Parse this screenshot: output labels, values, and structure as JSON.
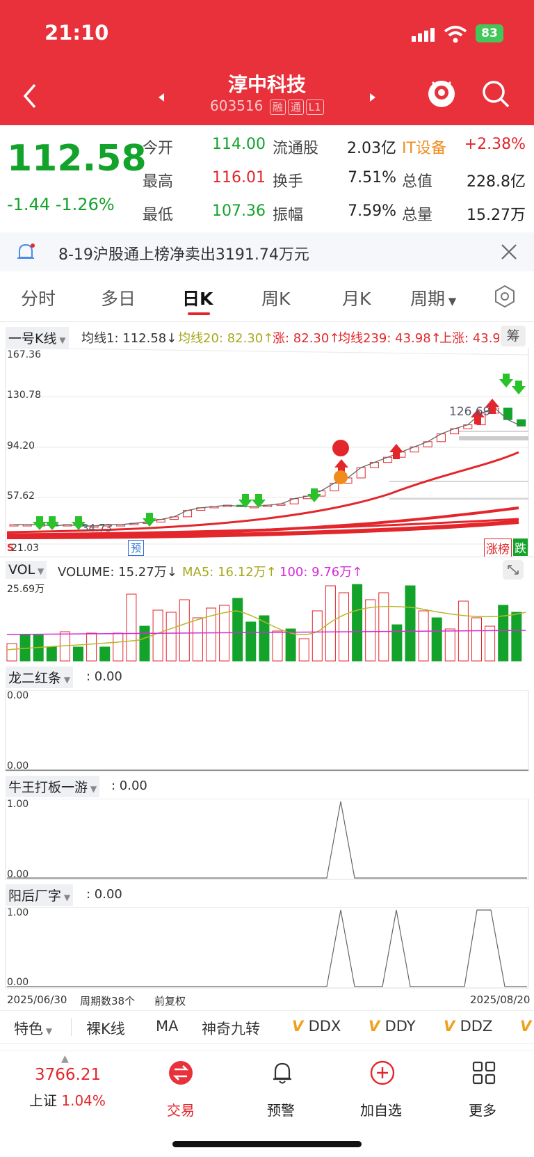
{
  "status": {
    "time": "21:10",
    "battery": "83"
  },
  "header": {
    "title": "淳中科技",
    "code": "603516",
    "tags": [
      "融",
      "通",
      "L1"
    ]
  },
  "quote": {
    "price": "112.58",
    "change": "-1.44",
    "change_pct": "-1.26%",
    "rows": [
      {
        "l1": "今开",
        "v1": "114.00",
        "l2": "流通股",
        "v2": "2.03亿",
        "l3": "IT设备",
        "v3": "+2.38%"
      },
      {
        "l1": "最高",
        "v1": "116.01",
        "l2": "换手",
        "v2": "7.51%",
        "l3": "总值",
        "v3": "228.8亿"
      },
      {
        "l1": "最低",
        "v1": "107.36",
        "l2": "振幅",
        "v2": "7.59%",
        "l3": "总量",
        "v3": "15.27万"
      }
    ]
  },
  "news": {
    "text": "8-19沪股通上榜净卖出3191.74万元"
  },
  "tabs": [
    "分时",
    "多日",
    "日K",
    "周K",
    "月K",
    "周期"
  ],
  "kline": {
    "selector": "一号K线",
    "indicators": [
      "均线1: 112.58↓",
      "均线20: 82.30↑",
      "涨: 82.30↑",
      "均线239: 43.98↑",
      "上涨: 43.9"
    ],
    "side_btn": "筹",
    "y_ticks": [
      "167.36",
      "130.78",
      "94.20",
      "57.62",
      "21.03"
    ],
    "high_label": "126.69",
    "low_label": "34.73",
    "pre_tag": "预",
    "s_tag": "S",
    "rank_tags": [
      "涨榜",
      "跌"
    ]
  },
  "volume": {
    "selector": "VOL",
    "indicators": [
      "VOLUME: 15.27万↓",
      "MA5: 16.12万↑",
      "100: 9.76万↑"
    ],
    "max_label": "25.69万"
  },
  "panel1": {
    "selector": "龙二红条",
    "value": ": 0.00",
    "y_top": "0.00",
    "y_bottom": "0.00"
  },
  "panel2": {
    "selector": "牛王打板一游",
    "value": ": 0.00",
    "y_top": "1.00",
    "y_bottom": "0.00"
  },
  "panel3": {
    "selector": "阳后厂字",
    "value": ": 0.00",
    "y_top": "1.00",
    "y_bottom": "0.00"
  },
  "footer_axis": {
    "start": "2025/06/30",
    "periods": "周期数38个",
    "adjust": "前复权",
    "end": "2025/08/20"
  },
  "indicator_bar": [
    "特色",
    "裸K线",
    "MA",
    "神奇九转",
    "DDX",
    "DDY",
    "DDZ"
  ],
  "bottom": {
    "index_value": "3766.21",
    "index_name": "上证",
    "index_pct": "1.04%",
    "items": [
      "交易",
      "预警",
      "加自选",
      "更多"
    ]
  }
}
